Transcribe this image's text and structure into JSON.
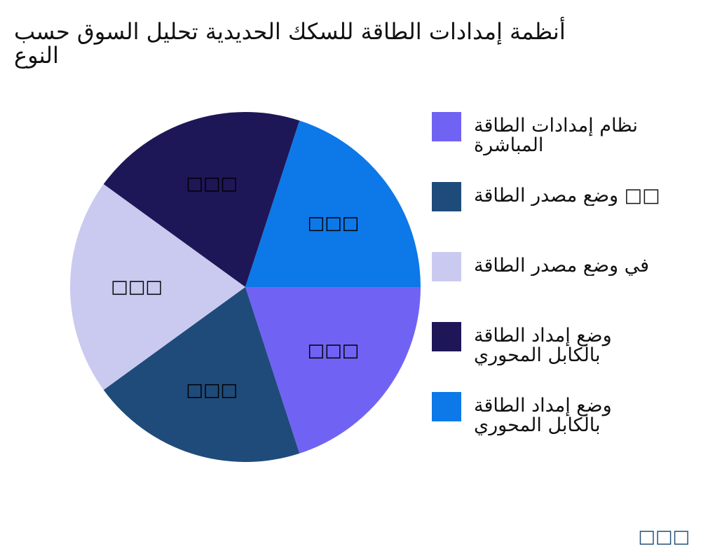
{
  "chart_data": {
    "type": "pie",
    "title": [
      "أنظمة إمدادات الطاقة للسكك الحديدية تحليل السوق حسب",
      "النوع"
    ],
    "slices": [
      {
        "label": "نظام إمدادات الطاقة المباشرة",
        "value": 20,
        "color": "#7063f3",
        "data_label": "□□□"
      },
      {
        "label": "وضع مصدر الطاقة □□",
        "value": 20,
        "color": "#1f4b7a",
        "data_label": "□□□"
      },
      {
        "label": "في وضع مصدر الطاقة",
        "value": 20,
        "color": "#cacaf0",
        "data_label": "□□□"
      },
      {
        "label": "وضع إمداد الطاقة بالكابل المحوري",
        "value": 20,
        "color": "#1d1758",
        "data_label": "□□□"
      },
      {
        "label": "وضع إمداد الطاقة بالكابل المحوري",
        "value": 20,
        "color": "#0d78e8",
        "data_label": "□□□"
      }
    ],
    "legend_position": "right",
    "start": "3 o'clock",
    "direction": "clockwise"
  },
  "legend_lines": [
    [
      "نظام إمدادات الطاقة",
      "المباشرة"
    ],
    [
      "وضع مصدر الطاقة □□"
    ],
    [
      "في وضع مصدر الطاقة"
    ],
    [
      "وضع إمداد الطاقة",
      "بالكابل المحوري"
    ],
    [
      "وضع إمداد الطاقة",
      "بالكابل المحوري"
    ]
  ],
  "watermark": "□□□"
}
